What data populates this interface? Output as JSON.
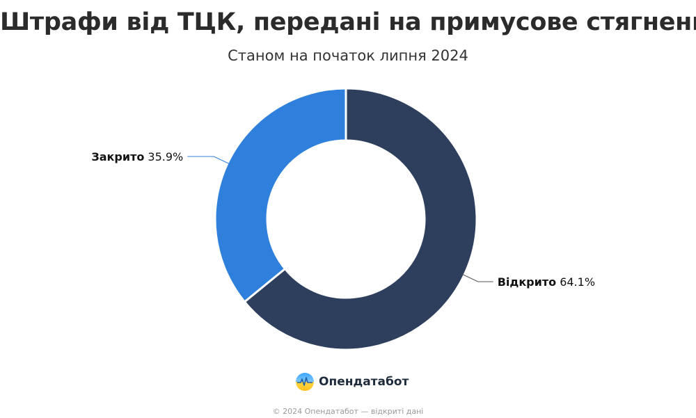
{
  "title": "Штрафи від ТЦК, передані на примусове стягнення",
  "subtitle": "Станом на початок липня 2024",
  "brand": {
    "name": "Опендатабот"
  },
  "credits": "© 2024 Опендатабот — відкриті дані",
  "colors": {
    "open": "#2e3f5e",
    "closed": "#2f80dc",
    "leader": "#555555"
  },
  "chart_data": {
    "type": "pie",
    "title": "Штрафи від ТЦК, передані на примусове стягнення",
    "subtitle": "Станом на початок липня 2024",
    "unit": "%",
    "slices": [
      {
        "label": "Відкрито",
        "value": 64.1,
        "value_text": "64.1%",
        "color": "#2e3f5e"
      },
      {
        "label": "Закрито",
        "value": 35.9,
        "value_text": "35.9%",
        "color": "#2f80dc"
      }
    ]
  }
}
